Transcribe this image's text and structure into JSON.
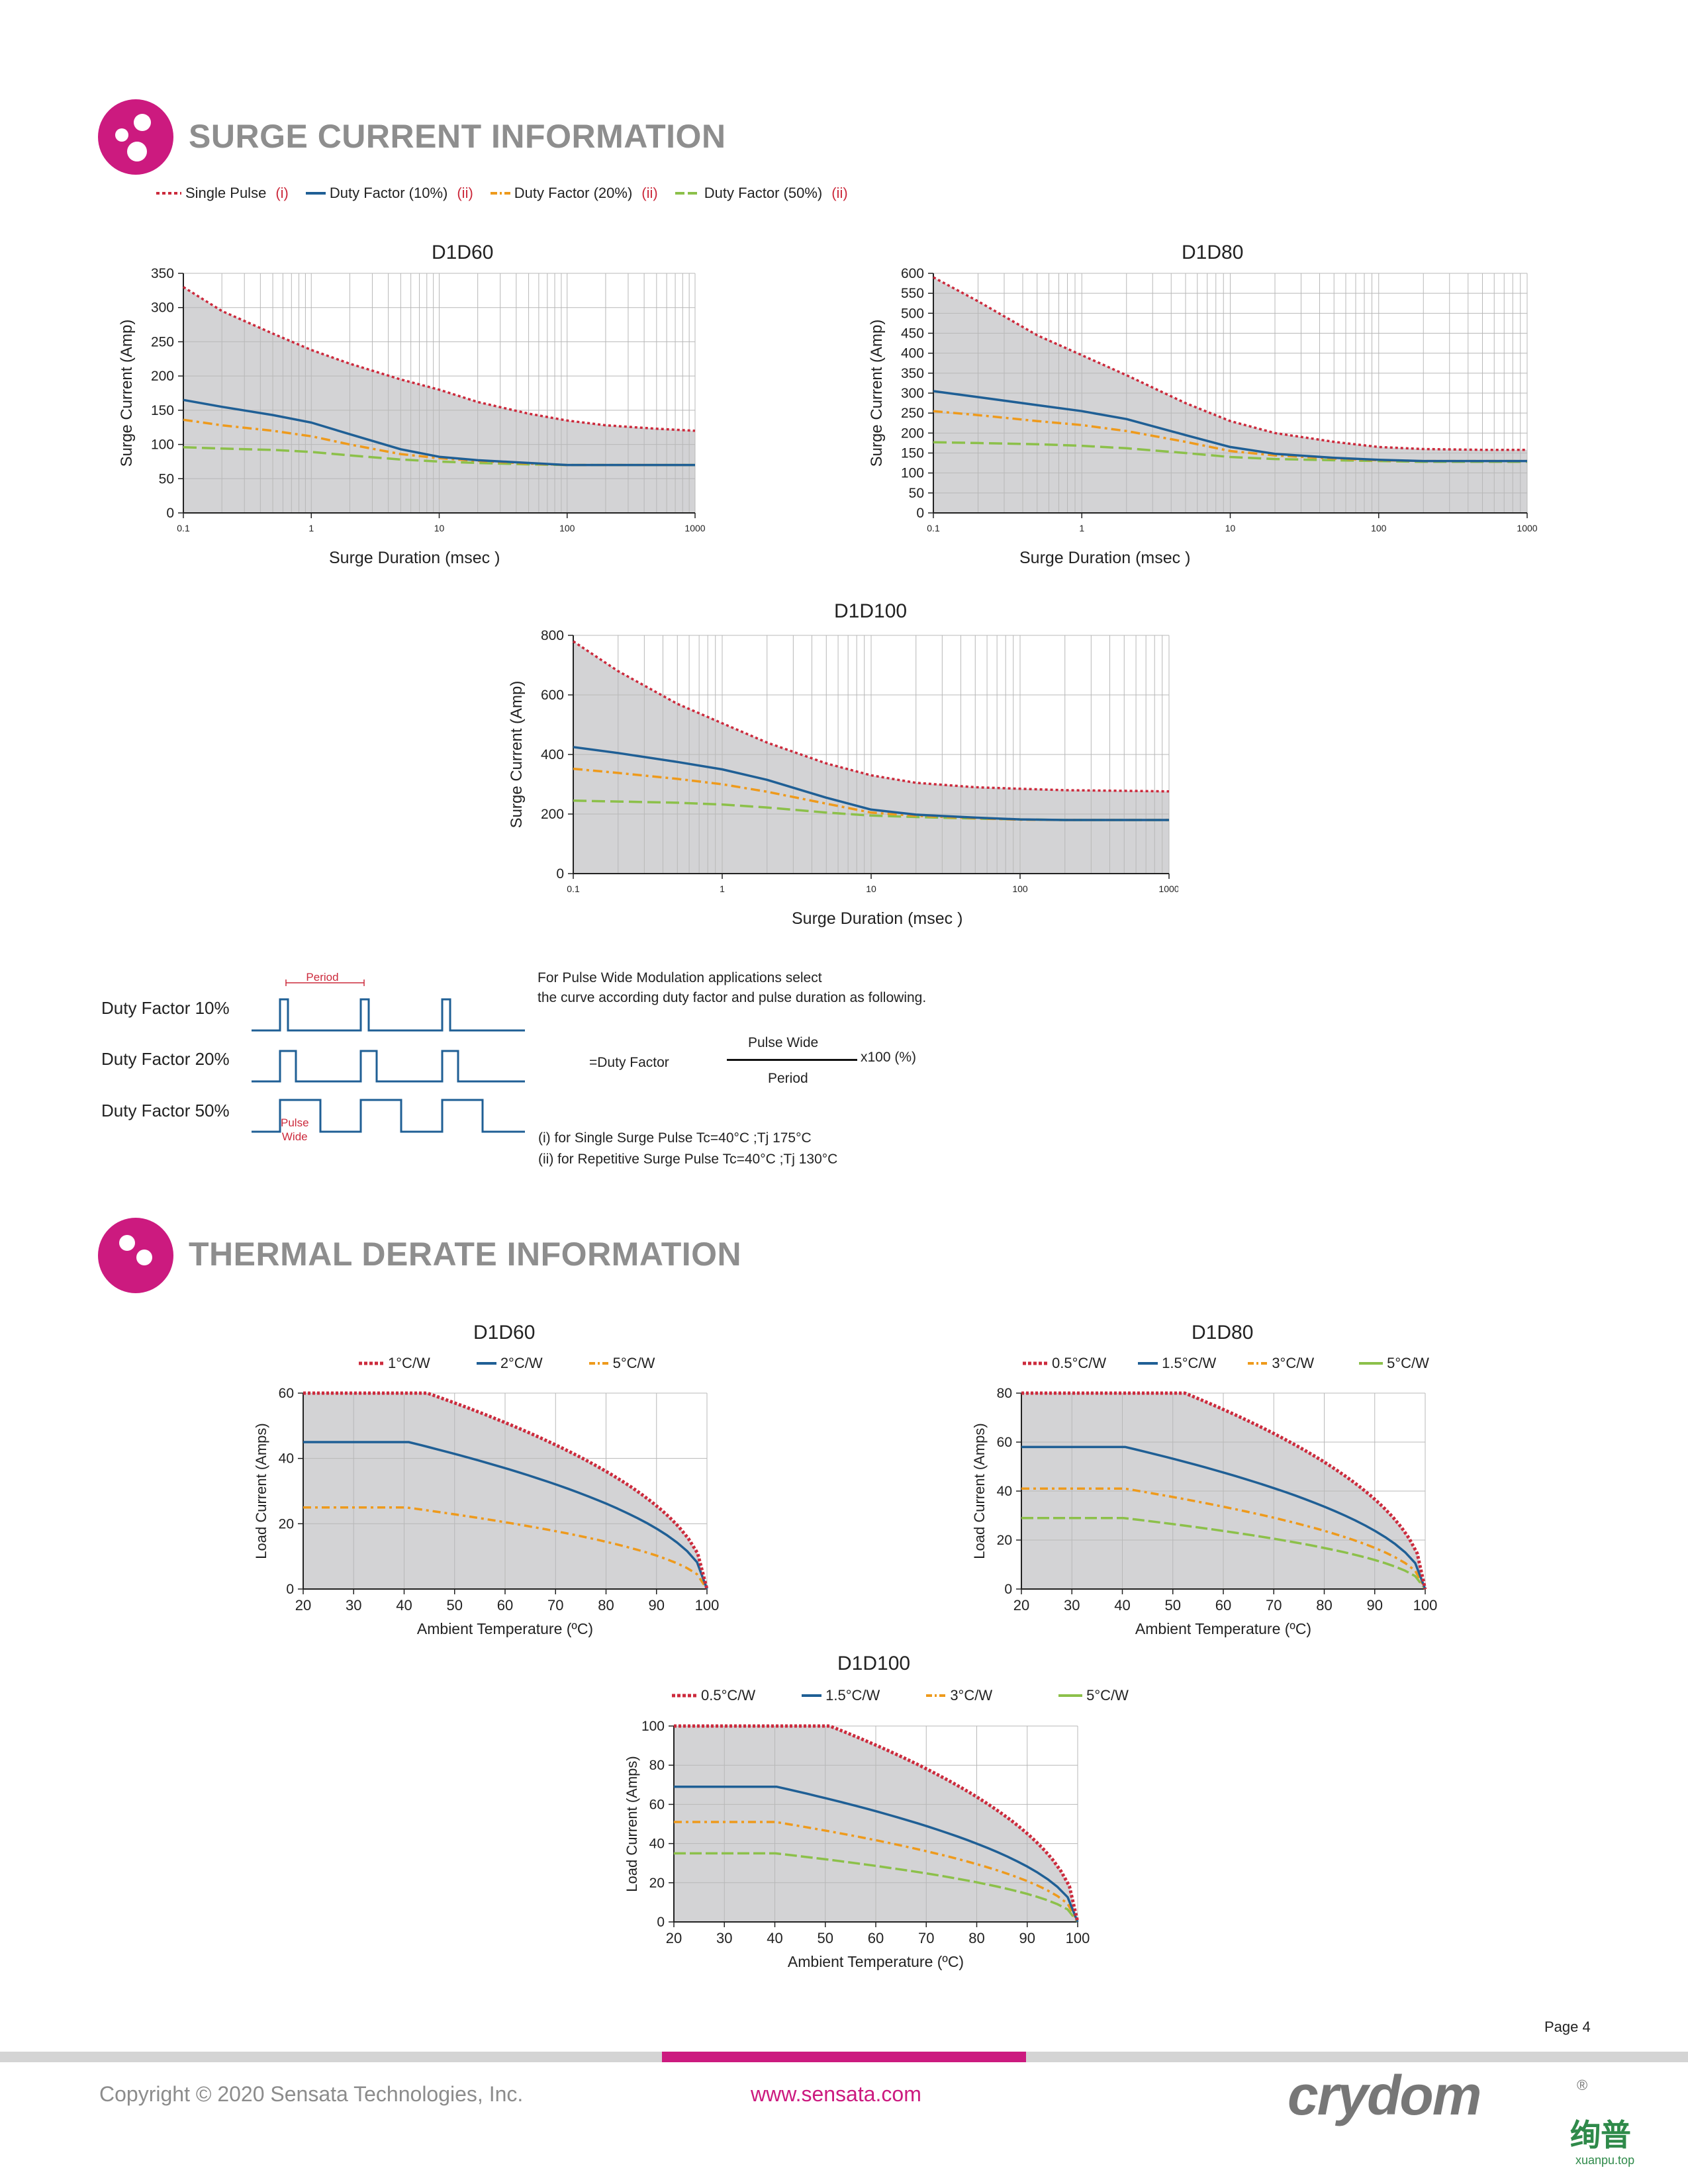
{
  "sections": {
    "surge_title": "SURGE CURRENT INFORMATION",
    "thermal_title": "THERMAL DERATE INFORMATION"
  },
  "surge_legend": [
    {
      "label": "Single Pulse",
      "note": "(i)",
      "color": "#cc2a3c",
      "style": "dotted"
    },
    {
      "label": "Duty Factor (10%)",
      "note": "(ii)",
      "color": "#1f5f95",
      "style": "solid"
    },
    {
      "label": "Duty Factor (20%)",
      "note": "(ii)",
      "color": "#ee9a1c",
      "style": "dashdot"
    },
    {
      "label": "Duty Factor (50%)",
      "note": "(ii)",
      "color": "#8cc04a",
      "style": "dashed"
    }
  ],
  "pwm": {
    "df10": "Duty Factor  10%",
    "df20": "Duty Factor  20%",
    "df50": "Duty Factor  50%",
    "period_label": "Period",
    "pulse_wide_label": "Pulse\nWide",
    "desc_line1": "For Pulse Wide Modulation applications select",
    "desc_line2": "the curve according duty factor and pulse duration as following.",
    "formula_left": "=Duty Factor",
    "formula_num": "Pulse Wide",
    "formula_den": "Period",
    "formula_right": "x100 (%)",
    "note1": "(i) for Single Surge  Pulse  Tc=40°C ;Tj 175°C",
    "note2": "(ii) for Repetitive  Surge Pulse  Tc=40°C ;Tj 130°C"
  },
  "footer": {
    "page": "Page 4",
    "copyright": "Copyright © 2020 Sensata Technologies, Inc.",
    "url": "www.sensata.com",
    "brand": "crydom",
    "brand_mark": "®",
    "watermark": "绚普",
    "watermark_sub": "xuanpu.top"
  },
  "colors": {
    "accent": "#cc1a7f",
    "red": "#cc2a3c",
    "blue": "#1f5f95",
    "orange": "#ee9a1c",
    "green": "#8cc04a",
    "fill": "#d3d3d5"
  },
  "chart_data": [
    {
      "id": "surge1",
      "type": "line",
      "title": "D1D60",
      "xlabel": "Surge Duration    (msec )",
      "ylabel": "Surge Current    (Amp)",
      "xscale": "log",
      "xlim": [
        0.1,
        1000
      ],
      "ylim": [
        0,
        350
      ],
      "xticks": [
        0.1,
        1,
        10,
        100,
        1000
      ],
      "xtick_labels": [
        "0.1",
        "1",
        "10",
        "100",
        "1000"
      ],
      "yticks": [
        0,
        50,
        100,
        150,
        200,
        250,
        300,
        350
      ],
      "x": [
        0.1,
        0.2,
        0.5,
        1,
        2,
        5,
        10,
        20,
        50,
        100,
        200,
        500,
        1000
      ],
      "series": [
        {
          "name": "Single Pulse",
          "values": [
            330,
            295,
            262,
            238,
            218,
            195,
            180,
            162,
            145,
            135,
            128,
            123,
            120
          ]
        },
        {
          "name": "Duty Factor (10%)",
          "values": [
            165,
            155,
            143,
            132,
            115,
            93,
            82,
            77,
            73,
            70,
            70,
            70,
            70
          ]
        },
        {
          "name": "Duty Factor (20%)",
          "values": [
            136,
            128,
            120,
            112,
            100,
            86,
            80,
            76,
            72,
            70,
            70,
            70,
            70
          ]
        },
        {
          "name": "Duty Factor (50%)",
          "values": [
            96,
            94,
            92,
            89,
            84,
            78,
            75,
            73,
            71,
            70,
            70,
            70,
            70
          ]
        }
      ]
    },
    {
      "id": "surge2",
      "type": "line",
      "title": "D1D80",
      "xlabel": "Surge Duration    (msec )",
      "ylabel": "Surge Current    (Amp)",
      "xscale": "log",
      "xlim": [
        0.1,
        1000
      ],
      "ylim": [
        0,
        600
      ],
      "xticks": [
        0.1,
        1,
        10,
        100,
        1000
      ],
      "xtick_labels": [
        "0.1",
        "1",
        "10",
        "100",
        "1000"
      ],
      "yticks": [
        0,
        50,
        100,
        150,
        200,
        250,
        300,
        350,
        400,
        450,
        500,
        550,
        600
      ],
      "x": [
        0.1,
        0.2,
        0.5,
        1,
        2,
        5,
        10,
        20,
        50,
        100,
        200,
        500,
        1000
      ],
      "series": [
        {
          "name": "Single Pulse",
          "values": [
            590,
            530,
            445,
            395,
            345,
            275,
            230,
            200,
            178,
            165,
            160,
            158,
            158
          ]
        },
        {
          "name": "Duty Factor (10%)",
          "values": [
            305,
            290,
            270,
            255,
            235,
            195,
            165,
            148,
            138,
            133,
            130,
            130,
            130
          ]
        },
        {
          "name": "Duty Factor (20%)",
          "values": [
            255,
            245,
            230,
            220,
            205,
            178,
            155,
            144,
            136,
            132,
            130,
            130,
            130
          ]
        },
        {
          "name": "Duty Factor (50%)",
          "values": [
            177,
            175,
            172,
            168,
            162,
            150,
            140,
            135,
            132,
            130,
            128,
            128,
            128
          ]
        }
      ]
    },
    {
      "id": "surge3",
      "type": "line",
      "title": "D1D100",
      "xlabel": "Surge Duration    (msec )",
      "ylabel": "Surge Current    (Amp)",
      "xscale": "log",
      "xlim": [
        0.1,
        1000
      ],
      "ylim": [
        0,
        800
      ],
      "xticks": [
        0.1,
        1,
        10,
        100,
        1000
      ],
      "xtick_labels": [
        "0.1",
        "1",
        "10",
        "100",
        "1000"
      ],
      "yticks": [
        0,
        200,
        400,
        600,
        800
      ],
      "x": [
        0.1,
        0.2,
        0.5,
        1,
        2,
        5,
        10,
        20,
        50,
        100,
        200,
        500,
        1000
      ],
      "series": [
        {
          "name": "Single Pulse",
          "values": [
            780,
            680,
            570,
            505,
            440,
            370,
            330,
            305,
            290,
            285,
            280,
            278,
            276
          ]
        },
        {
          "name": "Duty Factor (10%)",
          "values": [
            425,
            405,
            375,
            350,
            315,
            255,
            215,
            198,
            188,
            182,
            180,
            180,
            180
          ]
        },
        {
          "name": "Duty Factor (20%)",
          "values": [
            352,
            338,
            318,
            300,
            275,
            235,
            205,
            194,
            186,
            181,
            180,
            180,
            180
          ]
        },
        {
          "name": "Duty Factor (50%)",
          "values": [
            245,
            242,
            238,
            232,
            222,
            205,
            195,
            190,
            185,
            182,
            180,
            180,
            180
          ]
        }
      ]
    },
    {
      "id": "thermal1",
      "type": "line",
      "title": "D1D60",
      "xlabel": "Ambient Temperature (ºC)",
      "ylabel": "Load Current (Amps)",
      "xlim": [
        20,
        100
      ],
      "ylim": [
        0,
        60
      ],
      "xticks": [
        20,
        30,
        40,
        50,
        60,
        70,
        80,
        90,
        100
      ],
      "yticks": [
        0,
        20,
        40,
        60
      ],
      "legend": [
        "1°C/W",
        "2°C/W",
        "5°C/W"
      ],
      "series": [
        {
          "name": "1°C/W",
          "color": "#cc2a3c",
          "style": "dotted",
          "flat": 60,
          "knee": 44.6
        },
        {
          "name": "2°C/W",
          "color": "#1f5f95",
          "style": "solid",
          "flat": 45,
          "knee": 40.9
        },
        {
          "name": "5°C/W",
          "color": "#ee9a1c",
          "style": "dashdot",
          "flat": 25,
          "knee": 40.3
        }
      ]
    },
    {
      "id": "thermal2",
      "type": "line",
      "title": "D1D80",
      "xlabel": "Ambient Temperature (ºC)",
      "ylabel": "Load Current (Amps)",
      "xlim": [
        20,
        100
      ],
      "ylim": [
        0,
        80
      ],
      "xticks": [
        20,
        30,
        40,
        50,
        60,
        70,
        80,
        90,
        100
      ],
      "yticks": [
        0,
        20,
        40,
        60,
        80
      ],
      "legend": [
        "0.5°C/W",
        "1.5°C/W",
        "3°C/W",
        "5°C/W"
      ],
      "series": [
        {
          "name": "0.5°C/W",
          "color": "#cc2a3c",
          "style": "dotted",
          "flat": 80,
          "knee": 52.4
        },
        {
          "name": "1.5°C/W",
          "color": "#1f5f95",
          "style": "solid",
          "flat": 58,
          "knee": 40.6
        },
        {
          "name": "3°C/W",
          "color": "#ee9a1c",
          "style": "dashdot",
          "flat": 41,
          "knee": 40.5
        },
        {
          "name": "5°C/W",
          "color": "#8cc04a",
          "style": "dashed",
          "flat": 29,
          "knee": 40.2
        }
      ]
    },
    {
      "id": "thermal3",
      "type": "line",
      "title": "D1D100",
      "xlabel": "Ambient Temperature (ºC)",
      "ylabel": "Load Current (Amps)",
      "xlim": [
        20,
        100
      ],
      "ylim": [
        0,
        100
      ],
      "xticks": [
        20,
        30,
        40,
        50,
        60,
        70,
        80,
        90,
        100
      ],
      "yticks": [
        0,
        20,
        40,
        60,
        80,
        100
      ],
      "legend": [
        "0.5°C/W",
        "1.5°C/W",
        "3°C/W",
        "5°C/W"
      ],
      "series": [
        {
          "name": "0.5°C/W",
          "color": "#cc2a3c",
          "style": "dotted",
          "flat": 100,
          "knee": 50.9
        },
        {
          "name": "1.5°C/W",
          "color": "#1f5f95",
          "style": "solid",
          "flat": 69,
          "knee": 40.4
        },
        {
          "name": "3°C/W",
          "color": "#ee9a1c",
          "style": "dashdot",
          "flat": 51,
          "knee": 40.2
        },
        {
          "name": "5°C/W",
          "color": "#8cc04a",
          "style": "dashed",
          "flat": 35,
          "knee": 40.1
        }
      ]
    }
  ]
}
